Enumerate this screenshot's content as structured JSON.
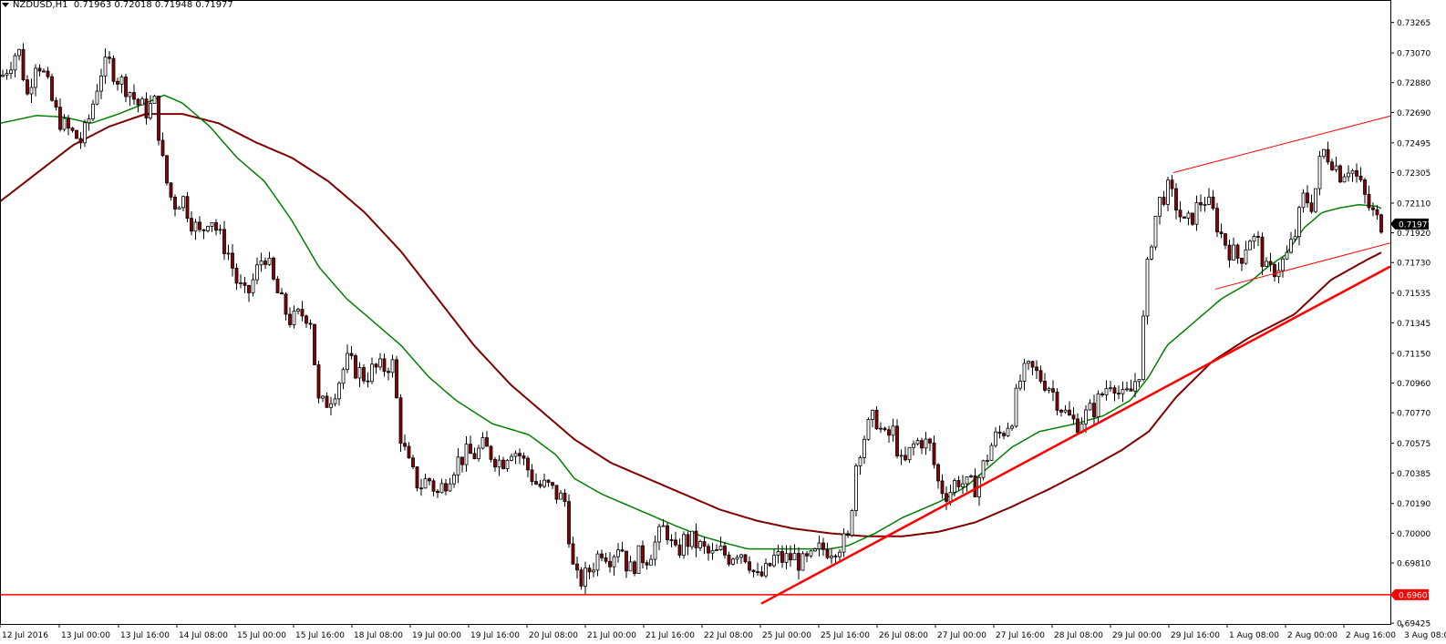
{
  "header": {
    "symbol": "NZDUSD,H1",
    "ohlc": "0.71963 0.72018 0.71948 0.71977"
  },
  "colors": {
    "bull_body": "#ffffff",
    "bear_body": "#8b0000",
    "candle_wick": "#000000",
    "ma_fast": "#008000",
    "ma_slow": "#800000",
    "trendline": "#ff0000",
    "support": "#ff0000",
    "price_label_bg": "#000000",
    "support_label_bg": "#ff0000"
  },
  "chart_data": {
    "type": "candlestick",
    "symbol": "NZDUSD",
    "timeframe": "H1",
    "ylim": [
      0.6942,
      0.7335
    ],
    "y_ticks": [
      "0.73265",
      "0.73070",
      "0.72880",
      "0.72690",
      "0.72495",
      "0.72305",
      "0.72110",
      "0.71920",
      "0.71730",
      "0.71535",
      "0.71345",
      "0.71150",
      "0.70960",
      "0.70770",
      "0.70575",
      "0.70385",
      "0.70190",
      "0.70000",
      "0.69810",
      "0.69425"
    ],
    "x_ticks": [
      "12 Jul 2016",
      "13 Jul 00:00",
      "13 Jul 16:00",
      "14 Jul 08:00",
      "15 Jul 00:00",
      "15 Jul 16:00",
      "18 Jul 08:00",
      "19 Jul 00:00",
      "19 Jul 16:00",
      "20 Jul 08:00",
      "21 Jul 00:00",
      "21 Jul 16:00",
      "22 Jul 08:00",
      "25 Jul 00:00",
      "25 Jul 16:00",
      "26 Jul 08:00",
      "27 Jul 00:00",
      "27 Jul 16:00",
      "28 Jul 08:00",
      "29 Jul 00:00",
      "29 Jul 16:00",
      "1 Aug 08:00",
      "2 Aug 00:00",
      "2 Aug 16:00",
      "3 Aug 08:00"
    ],
    "current_price": "0.71977",
    "support_price": "0.69607",
    "support_level": 0.69607,
    "close_path": [
      [
        0,
        0.729
      ],
      [
        10,
        0.73
      ],
      [
        20,
        0.731
      ],
      [
        30,
        0.728
      ],
      [
        40,
        0.7305
      ],
      [
        50,
        0.729
      ],
      [
        60,
        0.727
      ],
      [
        70,
        0.726
      ],
      [
        80,
        0.7255
      ],
      [
        90,
        0.725
      ],
      [
        100,
        0.727
      ],
      [
        110,
        0.7295
      ],
      [
        120,
        0.73
      ],
      [
        130,
        0.729
      ],
      [
        140,
        0.7285
      ],
      [
        150,
        0.7275
      ],
      [
        160,
        0.727
      ],
      [
        170,
        0.7275
      ],
      [
        180,
        0.723
      ],
      [
        190,
        0.721
      ],
      [
        200,
        0.7215
      ],
      [
        210,
        0.72
      ],
      [
        220,
        0.719
      ],
      [
        230,
        0.7205
      ],
      [
        240,
        0.719
      ],
      [
        250,
        0.718
      ],
      [
        260,
        0.716
      ],
      [
        270,
        0.715
      ],
      [
        280,
        0.7165
      ],
      [
        290,
        0.718
      ],
      [
        300,
        0.716
      ],
      [
        310,
        0.7145
      ],
      [
        320,
        0.7135
      ],
      [
        330,
        0.714
      ],
      [
        340,
        0.714
      ],
      [
        350,
        0.708
      ],
      [
        360,
        0.7085
      ],
      [
        370,
        0.7095
      ],
      [
        380,
        0.711
      ],
      [
        390,
        0.7105
      ],
      [
        400,
        0.71
      ],
      [
        410,
        0.7105
      ],
      [
        420,
        0.7105
      ],
      [
        430,
        0.711
      ],
      [
        440,
        0.706
      ],
      [
        450,
        0.704
      ],
      [
        460,
        0.703
      ],
      [
        470,
        0.7035
      ],
      [
        480,
        0.7025
      ],
      [
        490,
        0.7035
      ],
      [
        500,
        0.7045
      ],
      [
        510,
        0.705
      ],
      [
        520,
        0.705
      ],
      [
        530,
        0.7055
      ],
      [
        540,
        0.705
      ],
      [
        550,
        0.7045
      ],
      [
        560,
        0.7055
      ],
      [
        570,
        0.705
      ],
      [
        580,
        0.704
      ],
      [
        590,
        0.703
      ],
      [
        600,
        0.703
      ],
      [
        610,
        0.7025
      ],
      [
        620,
        0.702
      ],
      [
        630,
        0.697
      ],
      [
        640,
        0.697
      ],
      [
        650,
        0.698
      ],
      [
        660,
        0.699
      ],
      [
        670,
        0.6985
      ],
      [
        680,
        0.6995
      ],
      [
        690,
        0.6975
      ],
      [
        700,
        0.6985
      ],
      [
        710,
        0.6985
      ],
      [
        720,
        0.6995
      ],
      [
        730,
        0.7005
      ],
      [
        740,
        0.6985
      ],
      [
        750,
        0.6995
      ],
      [
        760,
        0.6995
      ],
      [
        770,
        0.699
      ],
      [
        780,
        0.6985
      ],
      [
        790,
        0.6988
      ],
      [
        800,
        0.6985
      ],
      [
        810,
        0.699
      ],
      [
        820,
        0.6985
      ],
      [
        830,
        0.697
      ],
      [
        840,
        0.6975
      ],
      [
        850,
        0.6985
      ],
      [
        860,
        0.6983
      ],
      [
        870,
        0.6985
      ],
      [
        880,
        0.698
      ],
      [
        890,
        0.6983
      ],
      [
        900,
        0.699
      ],
      [
        910,
        0.699
      ],
      [
        920,
        0.6993
      ],
      [
        930,
        0.6995
      ],
      [
        940,
        0.705
      ],
      [
        950,
        0.7065
      ],
      [
        960,
        0.7075
      ],
      [
        970,
        0.706
      ],
      [
        980,
        0.7065
      ],
      [
        990,
        0.704
      ],
      [
        1000,
        0.7055
      ],
      [
        1010,
        0.706
      ],
      [
        1020,
        0.7055
      ],
      [
        1030,
        0.703
      ],
      [
        1040,
        0.7025
      ],
      [
        1050,
        0.7035
      ],
      [
        1060,
        0.703
      ],
      [
        1070,
        0.703
      ],
      [
        1080,
        0.7045
      ],
      [
        1090,
        0.706
      ],
      [
        1100,
        0.7065
      ],
      [
        1110,
        0.7075
      ],
      [
        1120,
        0.71
      ],
      [
        1130,
        0.7105
      ],
      [
        1140,
        0.71
      ],
      [
        1150,
        0.7095
      ],
      [
        1160,
        0.7085
      ],
      [
        1170,
        0.7075
      ],
      [
        1180,
        0.707
      ],
      [
        1190,
        0.7075
      ],
      [
        1200,
        0.708
      ],
      [
        1210,
        0.709
      ],
      [
        1220,
        0.71
      ],
      [
        1230,
        0.7085
      ],
      [
        1240,
        0.709
      ],
      [
        1250,
        0.7105
      ],
      [
        1260,
        0.718
      ],
      [
        1270,
        0.721
      ],
      [
        1280,
        0.722
      ],
      [
        1290,
        0.721
      ],
      [
        1300,
        0.7195
      ],
      [
        1310,
        0.7205
      ],
      [
        1320,
        0.7215
      ],
      [
        1330,
        0.7205
      ],
      [
        1340,
        0.719
      ],
      [
        1350,
        0.718
      ],
      [
        1360,
        0.7175
      ],
      [
        1370,
        0.719
      ],
      [
        1380,
        0.7185
      ],
      [
        1390,
        0.7165
      ],
      [
        1400,
        0.717
      ],
      [
        1410,
        0.7175
      ],
      [
        1420,
        0.719
      ],
      [
        1430,
        0.7215
      ],
      [
        1440,
        0.721
      ],
      [
        1450,
        0.7245
      ],
      [
        1460,
        0.724
      ],
      [
        1470,
        0.723
      ],
      [
        1480,
        0.7235
      ],
      [
        1490,
        0.7225
      ],
      [
        1500,
        0.721
      ],
      [
        1510,
        0.72
      ],
      [
        1517,
        0.71977
      ]
    ],
    "ma_fast_path": [
      [
        0,
        0.7262
      ],
      [
        40,
        0.7267
      ],
      [
        70,
        0.7266
      ],
      [
        100,
        0.7262
      ],
      [
        130,
        0.7268
      ],
      [
        160,
        0.7275
      ],
      [
        180,
        0.728
      ],
      [
        200,
        0.7275
      ],
      [
        230,
        0.726
      ],
      [
        260,
        0.724
      ],
      [
        290,
        0.7225
      ],
      [
        320,
        0.72
      ],
      [
        350,
        0.717
      ],
      [
        380,
        0.715
      ],
      [
        410,
        0.7135
      ],
      [
        440,
        0.712
      ],
      [
        470,
        0.71
      ],
      [
        500,
        0.7085
      ],
      [
        540,
        0.707
      ],
      [
        580,
        0.7063
      ],
      [
        610,
        0.705
      ],
      [
        630,
        0.7035
      ],
      [
        660,
        0.7025
      ],
      [
        700,
        0.7015
      ],
      [
        740,
        0.7005
      ],
      [
        770,
        0.6998
      ],
      [
        800,
        0.6993
      ],
      [
        820,
        0.699
      ],
      [
        850,
        0.699
      ],
      [
        880,
        0.699
      ],
      [
        910,
        0.699
      ],
      [
        930,
        0.6992
      ],
      [
        960,
        0.7
      ],
      [
        990,
        0.701
      ],
      [
        1030,
        0.702
      ],
      [
        1060,
        0.703
      ],
      [
        1090,
        0.7045
      ],
      [
        1110,
        0.7055
      ],
      [
        1140,
        0.7065
      ],
      [
        1180,
        0.707
      ],
      [
        1210,
        0.7075
      ],
      [
        1240,
        0.7085
      ],
      [
        1260,
        0.71
      ],
      [
        1280,
        0.712
      ],
      [
        1310,
        0.7135
      ],
      [
        1340,
        0.715
      ],
      [
        1370,
        0.716
      ],
      [
        1390,
        0.717
      ],
      [
        1410,
        0.7178
      ],
      [
        1430,
        0.7195
      ],
      [
        1450,
        0.7205
      ],
      [
        1470,
        0.7208
      ],
      [
        1490,
        0.721
      ],
      [
        1510,
        0.7209
      ],
      [
        1517,
        0.7207
      ]
    ],
    "ma_slow_path": [
      [
        0,
        0.7212
      ],
      [
        40,
        0.723
      ],
      [
        80,
        0.7248
      ],
      [
        120,
        0.726
      ],
      [
        160,
        0.7268
      ],
      [
        200,
        0.7268
      ],
      [
        240,
        0.7262
      ],
      [
        280,
        0.725
      ],
      [
        320,
        0.724
      ],
      [
        360,
        0.7225
      ],
      [
        400,
        0.7205
      ],
      [
        440,
        0.718
      ],
      [
        480,
        0.715
      ],
      [
        520,
        0.712
      ],
      [
        560,
        0.7095
      ],
      [
        600,
        0.7075
      ],
      [
        630,
        0.706
      ],
      [
        670,
        0.7045
      ],
      [
        710,
        0.7035
      ],
      [
        750,
        0.7025
      ],
      [
        790,
        0.7015
      ],
      [
        830,
        0.7008
      ],
      [
        870,
        0.7003
      ],
      [
        910,
        0.7
      ],
      [
        950,
        0.6998
      ],
      [
        990,
        0.6998
      ],
      [
        1030,
        0.7001
      ],
      [
        1070,
        0.7007
      ],
      [
        1110,
        0.7017
      ],
      [
        1150,
        0.7028
      ],
      [
        1190,
        0.704
      ],
      [
        1230,
        0.7053
      ],
      [
        1260,
        0.7065
      ],
      [
        1290,
        0.7087
      ],
      [
        1330,
        0.711
      ],
      [
        1370,
        0.7125
      ],
      [
        1420,
        0.714
      ],
      [
        1460,
        0.7162
      ],
      [
        1500,
        0.7175
      ],
      [
        1517,
        0.718
      ]
    ],
    "trendlines": [
      {
        "name": "",
        "from": [
          835,
          0.6955
        ],
        "to": [
          1525,
          0.71705
        ],
        "width": 2.5
      },
      {
        "name": "",
        "from": [
          1287,
          0.72305
        ],
        "to": [
          1525,
          0.72667
        ],
        "width": 1
      },
      {
        "name": "",
        "from": [
          1333,
          0.7156
        ],
        "to": [
          1525,
          0.71855
        ],
        "width": 1
      }
    ]
  }
}
